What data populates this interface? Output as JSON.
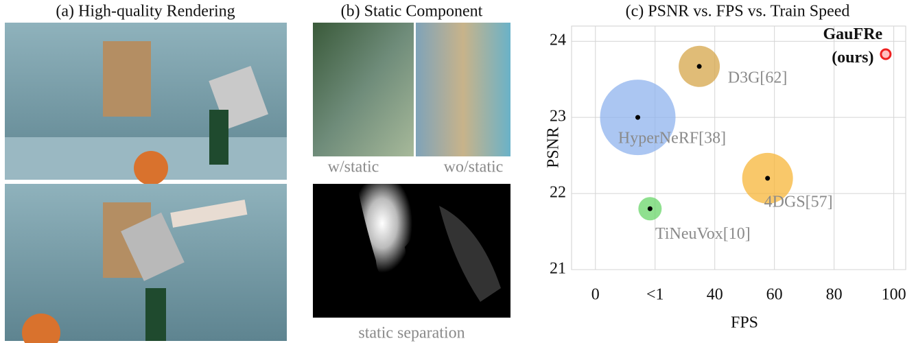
{
  "panel_a": {
    "title": "(a) High-quality Rendering"
  },
  "panel_b": {
    "title": "(b) Static Component",
    "label_with": "w/static",
    "label_without": "wo/static",
    "label_separation": "static separation"
  },
  "chart_data": {
    "type": "bubble",
    "title": "(c) PSNR vs. FPS vs. Train Speed",
    "x_label": "FPS",
    "y_label": "PSNR",
    "xlim": [
      -8,
      104
    ],
    "ylim": [
      21,
      24.2
    ],
    "xticks": [
      0,
      {
        "value": 20,
        "label": "<1"
      },
      40,
      60,
      80,
      100
    ],
    "yticks": [
      21,
      22,
      23,
      24
    ],
    "grid": true,
    "series": [
      {
        "name": "HyperNeRF[38]",
        "color": "#8fb3ee",
        "x": 14.2,
        "y": 23.0,
        "size": 55
      },
      {
        "name": "D3G[62]",
        "color": "#d6a54a",
        "x": 34.8,
        "y": 23.67,
        "size": 30
      },
      {
        "name": "4DGS[57]",
        "color": "#f7b638",
        "x": 57.7,
        "y": 22.2,
        "size": 37
      },
      {
        "name": "TiNeuVox[10]",
        "color": "#6ad66a",
        "x": 18.3,
        "y": 21.8,
        "size": 17
      },
      {
        "name": "GauFRe (ours)",
        "color": "#ee2020",
        "x": 97.3,
        "y": 23.83,
        "size": 7
      }
    ]
  }
}
